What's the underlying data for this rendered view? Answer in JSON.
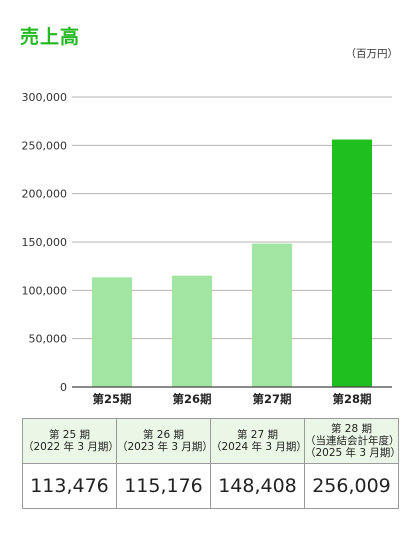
{
  "header": {
    "title": "売上高",
    "unit": "（百万円）"
  },
  "chart_data": {
    "type": "bar",
    "title": "売上高",
    "unit": "（百万円）",
    "categories": [
      "第25期",
      "第26期",
      "第27期",
      "第28期"
    ],
    "values": [
      113476,
      115176,
      148408,
      256009
    ],
    "ylim": [
      0,
      300000
    ],
    "yticks": [
      0,
      50000,
      100000,
      150000,
      200000,
      250000,
      300000
    ],
    "ytick_labels": [
      "0",
      "50,000",
      "100,000",
      "150,000",
      "200,000",
      "250,000",
      "300,000"
    ],
    "grid": true,
    "colors": [
      "#a3e6a3",
      "#a3e6a3",
      "#a3e6a3",
      "#1fbf1f"
    ]
  },
  "table": {
    "headers": [
      [
        "第 25 期",
        "（2022 年 3 月期）"
      ],
      [
        "第 26 期",
        "（2023 年 3 月期）"
      ],
      [
        "第 27 期",
        "（2024 年 3 月期）"
      ],
      [
        "第 28 期",
        "（当連結会計年度）",
        "（2025 年 3 月期）"
      ]
    ],
    "values": [
      "113,476",
      "115,176",
      "148,408",
      "256,009"
    ]
  }
}
